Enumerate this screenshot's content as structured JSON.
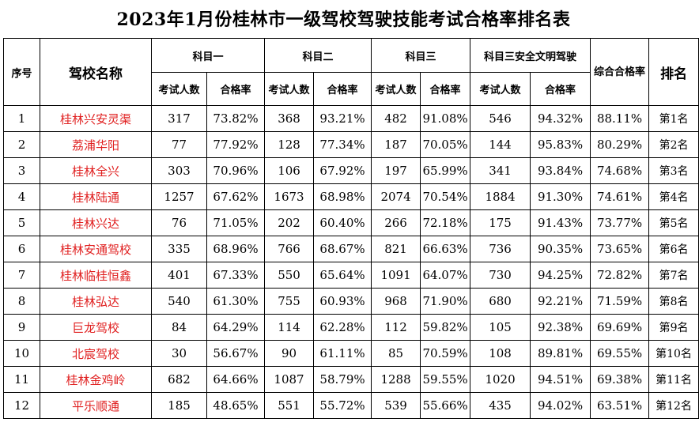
{
  "title": "2023年1月份桂林市一级驾校驾驶技能考试合格率排名表",
  "headers": {
    "no": "序号",
    "school": "驾校名称",
    "subject1": "科目一",
    "subject2": "科目二",
    "subject3": "科目三",
    "subject3_safety": "科目三安全文明驾驶",
    "composite": "综合合格率",
    "rank": "排名",
    "count": "考试人数",
    "rate": "合格率"
  },
  "rows": [
    {
      "no": "1",
      "name": "桂林兴安灵渠",
      "s1_n": "317",
      "s1_r": "73.82%",
      "s2_n": "368",
      "s2_r": "93.21%",
      "s3_n": "482",
      "s3_r": "91.08%",
      "ss_n": "546",
      "ss_r": "94.32%",
      "comp": "88.11%",
      "rank": "第1名"
    },
    {
      "no": "2",
      "name": "荔浦华阳",
      "s1_n": "77",
      "s1_r": "77.92%",
      "s2_n": "128",
      "s2_r": "77.34%",
      "s3_n": "187",
      "s3_r": "70.05%",
      "ss_n": "144",
      "ss_r": "95.83%",
      "comp": "80.29%",
      "rank": "第2名"
    },
    {
      "no": "3",
      "name": "桂林全兴",
      "s1_n": "303",
      "s1_r": "70.96%",
      "s2_n": "106",
      "s2_r": "67.92%",
      "s3_n": "197",
      "s3_r": "65.99%",
      "ss_n": "341",
      "ss_r": "93.84%",
      "comp": "74.68%",
      "rank": "第3名"
    },
    {
      "no": "4",
      "name": "桂林陆通",
      "s1_n": "1257",
      "s1_r": "67.62%",
      "s2_n": "1673",
      "s2_r": "68.98%",
      "s3_n": "2074",
      "s3_r": "70.54%",
      "ss_n": "1884",
      "ss_r": "91.30%",
      "comp": "74.61%",
      "rank": "第4名"
    },
    {
      "no": "5",
      "name": "桂林兴达",
      "s1_n": "76",
      "s1_r": "71.05%",
      "s2_n": "202",
      "s2_r": "60.40%",
      "s3_n": "266",
      "s3_r": "72.18%",
      "ss_n": "175",
      "ss_r": "91.43%",
      "comp": "73.77%",
      "rank": "第5名"
    },
    {
      "no": "6",
      "name": "桂林安通驾校",
      "s1_n": "335",
      "s1_r": "68.96%",
      "s2_n": "766",
      "s2_r": "68.67%",
      "s3_n": "821",
      "s3_r": "66.63%",
      "ss_n": "736",
      "ss_r": "90.35%",
      "comp": "73.65%",
      "rank": "第6名"
    },
    {
      "no": "7",
      "name": "桂林临桂恒鑫",
      "s1_n": "401",
      "s1_r": "67.33%",
      "s2_n": "550",
      "s2_r": "65.64%",
      "s3_n": "1091",
      "s3_r": "64.07%",
      "ss_n": "730",
      "ss_r": "94.25%",
      "comp": "72.82%",
      "rank": "第7名"
    },
    {
      "no": "8",
      "name": "桂林弘达",
      "s1_n": "540",
      "s1_r": "61.30%",
      "s2_n": "755",
      "s2_r": "60.93%",
      "s3_n": "968",
      "s3_r": "71.90%",
      "ss_n": "680",
      "ss_r": "92.21%",
      "comp": "71.59%",
      "rank": "第8名"
    },
    {
      "no": "9",
      "name": "巨龙驾校",
      "s1_n": "84",
      "s1_r": "64.29%",
      "s2_n": "114",
      "s2_r": "62.28%",
      "s3_n": "112",
      "s3_r": "59.82%",
      "ss_n": "105",
      "ss_r": "92.38%",
      "comp": "69.69%",
      "rank": "第9名"
    },
    {
      "no": "10",
      "name": "北宸驾校",
      "s1_n": "30",
      "s1_r": "56.67%",
      "s2_n": "90",
      "s2_r": "61.11%",
      "s3_n": "85",
      "s3_r": "70.59%",
      "ss_n": "108",
      "ss_r": "89.81%",
      "comp": "69.55%",
      "rank": "第10名"
    },
    {
      "no": "11",
      "name": "桂林金鸡岭",
      "s1_n": "682",
      "s1_r": "64.66%",
      "s2_n": "1087",
      "s2_r": "58.79%",
      "s3_n": "1288",
      "s3_r": "59.55%",
      "ss_n": "1020",
      "ss_r": "94.51%",
      "comp": "69.38%",
      "rank": "第11名"
    },
    {
      "no": "12",
      "name": "平乐顺通",
      "s1_n": "185",
      "s1_r": "48.65%",
      "s2_n": "551",
      "s2_r": "55.72%",
      "s3_n": "539",
      "s3_r": "55.66%",
      "ss_n": "435",
      "ss_r": "94.02%",
      "comp": "63.51%",
      "rank": "第12名"
    }
  ]
}
